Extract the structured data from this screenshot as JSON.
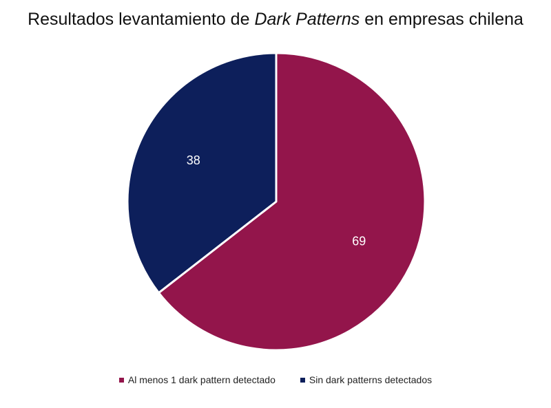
{
  "chart_data": {
    "type": "pie",
    "title_parts": {
      "before": "Resultados levantamiento de ",
      "emphasis": "Dark Patterns",
      "after": " en empresas chilena"
    },
    "slices": [
      {
        "label": "Al menos 1 dark pattern detectado",
        "value": 69,
        "color": "#93154B"
      },
      {
        "label": "Sin dark patterns detectados",
        "value": 38,
        "color": "#0D1F5B"
      }
    ],
    "start_angle_deg": 0,
    "direction": "clockwise",
    "legend_position": "bottom",
    "data_labels": true
  }
}
